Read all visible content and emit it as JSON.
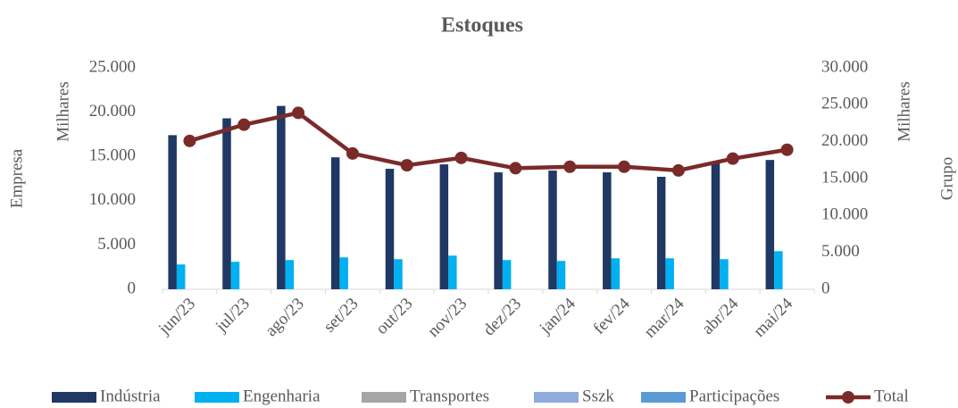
{
  "chart_data": {
    "type": "bar",
    "title": "Estoques",
    "y_label": "Empresa",
    "y_unit": "Milhares",
    "y2_label": "Grupo",
    "y2_unit": "Milhares",
    "categories": [
      "jun/23",
      "jul/23",
      "ago/23",
      "set/23",
      "out/23",
      "nov/23",
      "dez/23",
      "jan/24",
      "fev/24",
      "mar/24",
      "abr/24",
      "mai/24"
    ],
    "series": [
      {
        "name": "Indústria",
        "color": "#1f3864",
        "values": [
          17400,
          19300,
          20700,
          14900,
          13600,
          14100,
          13200,
          13400,
          13200,
          12700,
          14300,
          14600
        ]
      },
      {
        "name": "Engenharia",
        "color": "#00b0f0",
        "values": [
          2800,
          3100,
          3300,
          3600,
          3400,
          3800,
          3300,
          3200,
          3500,
          3500,
          3400,
          4300
        ]
      },
      {
        "name": "Transportes",
        "color": "#a5a5a5",
        "values": [
          0,
          0,
          0,
          0,
          0,
          0,
          0,
          0,
          0,
          0,
          0,
          0
        ]
      },
      {
        "name": "Sszk",
        "color": "#8faadc",
        "values": [
          0,
          0,
          0,
          0,
          0,
          0,
          0,
          0,
          0,
          0,
          0,
          0
        ]
      },
      {
        "name": "Participações",
        "color": "#5b9bd5",
        "values": [
          0,
          0,
          0,
          0,
          0,
          0,
          0,
          0,
          0,
          0,
          0,
          0
        ]
      },
      {
        "name": "Total",
        "color": "#7b2a2a",
        "type": "line",
        "axis": "y2",
        "values": [
          20100,
          22300,
          23900,
          18400,
          16800,
          17800,
          16400,
          16600,
          16600,
          16100,
          17700,
          18900
        ]
      }
    ],
    "ylim": [
      0,
      25000
    ],
    "yticks": [
      0,
      {
        "value": 5000,
        "label": "5.000"
      },
      {
        "value": 10000,
        "label": "10.000"
      },
      {
        "value": 15000,
        "label": "15.000"
      },
      {
        "value": 20000,
        "label": "20.000"
      },
      {
        "value": 25000,
        "label": "25.000"
      }
    ],
    "y2lim": [
      0,
      30000
    ],
    "y2ticks": [
      0,
      {
        "value": 5000,
        "label": "5.000"
      },
      {
        "value": 10000,
        "label": "10.000"
      },
      {
        "value": 15000,
        "label": "15.000"
      },
      {
        "value": 20000,
        "label": "20.000"
      },
      {
        "value": 25000,
        "label": "25.000"
      },
      {
        "value": 30000,
        "label": "30.000"
      }
    ],
    "grid": false,
    "legend": "bottom"
  }
}
